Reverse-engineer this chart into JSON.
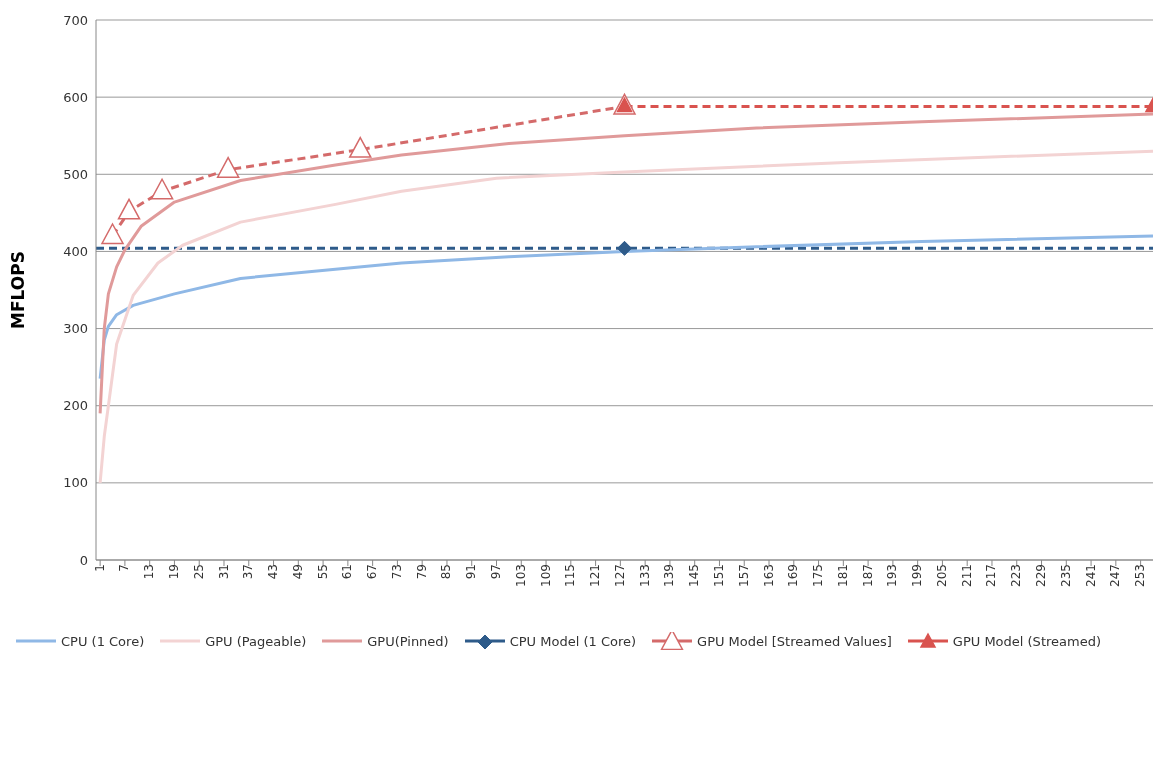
{
  "chart_data": {
    "type": "line",
    "ylabel": "MFLOPS",
    "xlim": [
      0,
      256
    ],
    "xticks": [
      1,
      7,
      13,
      19,
      25,
      31,
      37,
      43,
      49,
      55,
      61,
      67,
      73,
      79,
      85,
      91,
      97,
      103,
      109,
      115,
      121,
      127,
      133,
      139,
      145,
      151,
      157,
      163,
      169,
      175,
      181,
      187,
      193,
      199,
      205,
      211,
      217,
      223,
      229,
      235,
      241,
      247,
      253
    ],
    "ylim": [
      0,
      700
    ],
    "yticks": [
      0,
      100,
      200,
      300,
      400,
      500,
      600,
      700
    ],
    "grid": "y",
    "legend": "bottom",
    "line_style": "solid",
    "marker": "none",
    "ref_lines": [
      {
        "axis": "y",
        "value": 404,
        "color": "#2e5b8a",
        "line_style": "dashed"
      }
    ],
    "series": [
      {
        "name": "CPU (1 Core)",
        "color": "#8fb8e6",
        "x": [
          1,
          2,
          3,
          5,
          9,
          19,
          35,
          58,
          74,
          100,
          128,
          160,
          200,
          256
        ],
        "values": [
          235,
          285,
          303,
          318,
          330,
          345,
          365,
          377,
          385,
          393,
          400,
          406,
          413,
          420
        ]
      },
      {
        "name": "GPU (Pageable)",
        "color": "#f3d3d3",
        "x": [
          1,
          2,
          3,
          5,
          9,
          15,
          21,
          35,
          58,
          74,
          97,
          128,
          180,
          256
        ],
        "values": [
          100,
          160,
          200,
          280,
          343,
          385,
          408,
          438,
          461,
          478,
          495,
          503,
          515,
          530
        ]
      },
      {
        "name": "GPU(Pinned)",
        "color": "#e09a9a",
        "x": [
          1,
          2,
          3,
          5,
          7,
          11,
          19,
          35,
          58,
          74,
          100,
          128,
          160,
          200,
          256
        ],
        "values": [
          190,
          300,
          345,
          380,
          402,
          433,
          464,
          492,
          512,
          525,
          540,
          550,
          560,
          568,
          578
        ]
      },
      {
        "name": "CPU Model (1 Core)",
        "color": "#2e5b8a",
        "x": [
          128
        ],
        "values": [
          404
        ],
        "marker": "diamond"
      },
      {
        "name": "GPU Model [Streamed Values]",
        "color": "#d46a6a",
        "x": [
          4,
          8,
          16,
          32,
          64,
          128
        ],
        "values": [
          420,
          452,
          478,
          506,
          532,
          588
        ],
        "marker": "triangle",
        "line_style": "dashed"
      },
      {
        "name": "GPU Model (Streamed)",
        "color": "#d9534f",
        "x": [
          128,
          256
        ],
        "values": [
          588,
          588
        ],
        "marker": "triangle",
        "line_style": "dashed"
      }
    ]
  }
}
